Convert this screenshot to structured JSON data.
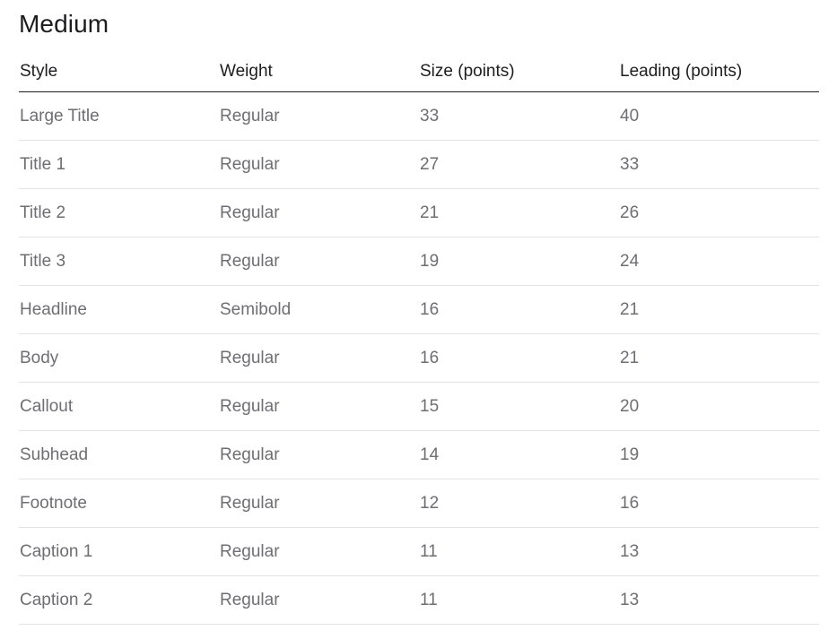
{
  "section": {
    "title": "Medium"
  },
  "table": {
    "headers": {
      "style": "Style",
      "weight": "Weight",
      "size": "Size (points)",
      "leading": "Leading (points)"
    },
    "rows": [
      {
        "style": "Large Title",
        "weight": "Regular",
        "size": "33",
        "leading": "40"
      },
      {
        "style": "Title 1",
        "weight": "Regular",
        "size": "27",
        "leading": "33"
      },
      {
        "style": "Title 2",
        "weight": "Regular",
        "size": "21",
        "leading": "26"
      },
      {
        "style": "Title 3",
        "weight": "Regular",
        "size": "19",
        "leading": "24"
      },
      {
        "style": "Headline",
        "weight": "Semibold",
        "size": "16",
        "leading": "21"
      },
      {
        "style": "Body",
        "weight": "Regular",
        "size": "16",
        "leading": "21"
      },
      {
        "style": "Callout",
        "weight": "Regular",
        "size": "15",
        "leading": "20"
      },
      {
        "style": "Subhead",
        "weight": "Regular",
        "size": "14",
        "leading": "19"
      },
      {
        "style": "Footnote",
        "weight": "Regular",
        "size": "12",
        "leading": "16"
      },
      {
        "style": "Caption 1",
        "weight": "Regular",
        "size": "11",
        "leading": "13"
      },
      {
        "style": "Caption 2",
        "weight": "Regular",
        "size": "11",
        "leading": "13"
      }
    ]
  },
  "colors": {
    "heading_text": "#1d1d1f",
    "body_text": "#6e6e73",
    "header_rule": "#1d1d1f",
    "row_divider": "#e3e3e6",
    "background": "#ffffff"
  }
}
